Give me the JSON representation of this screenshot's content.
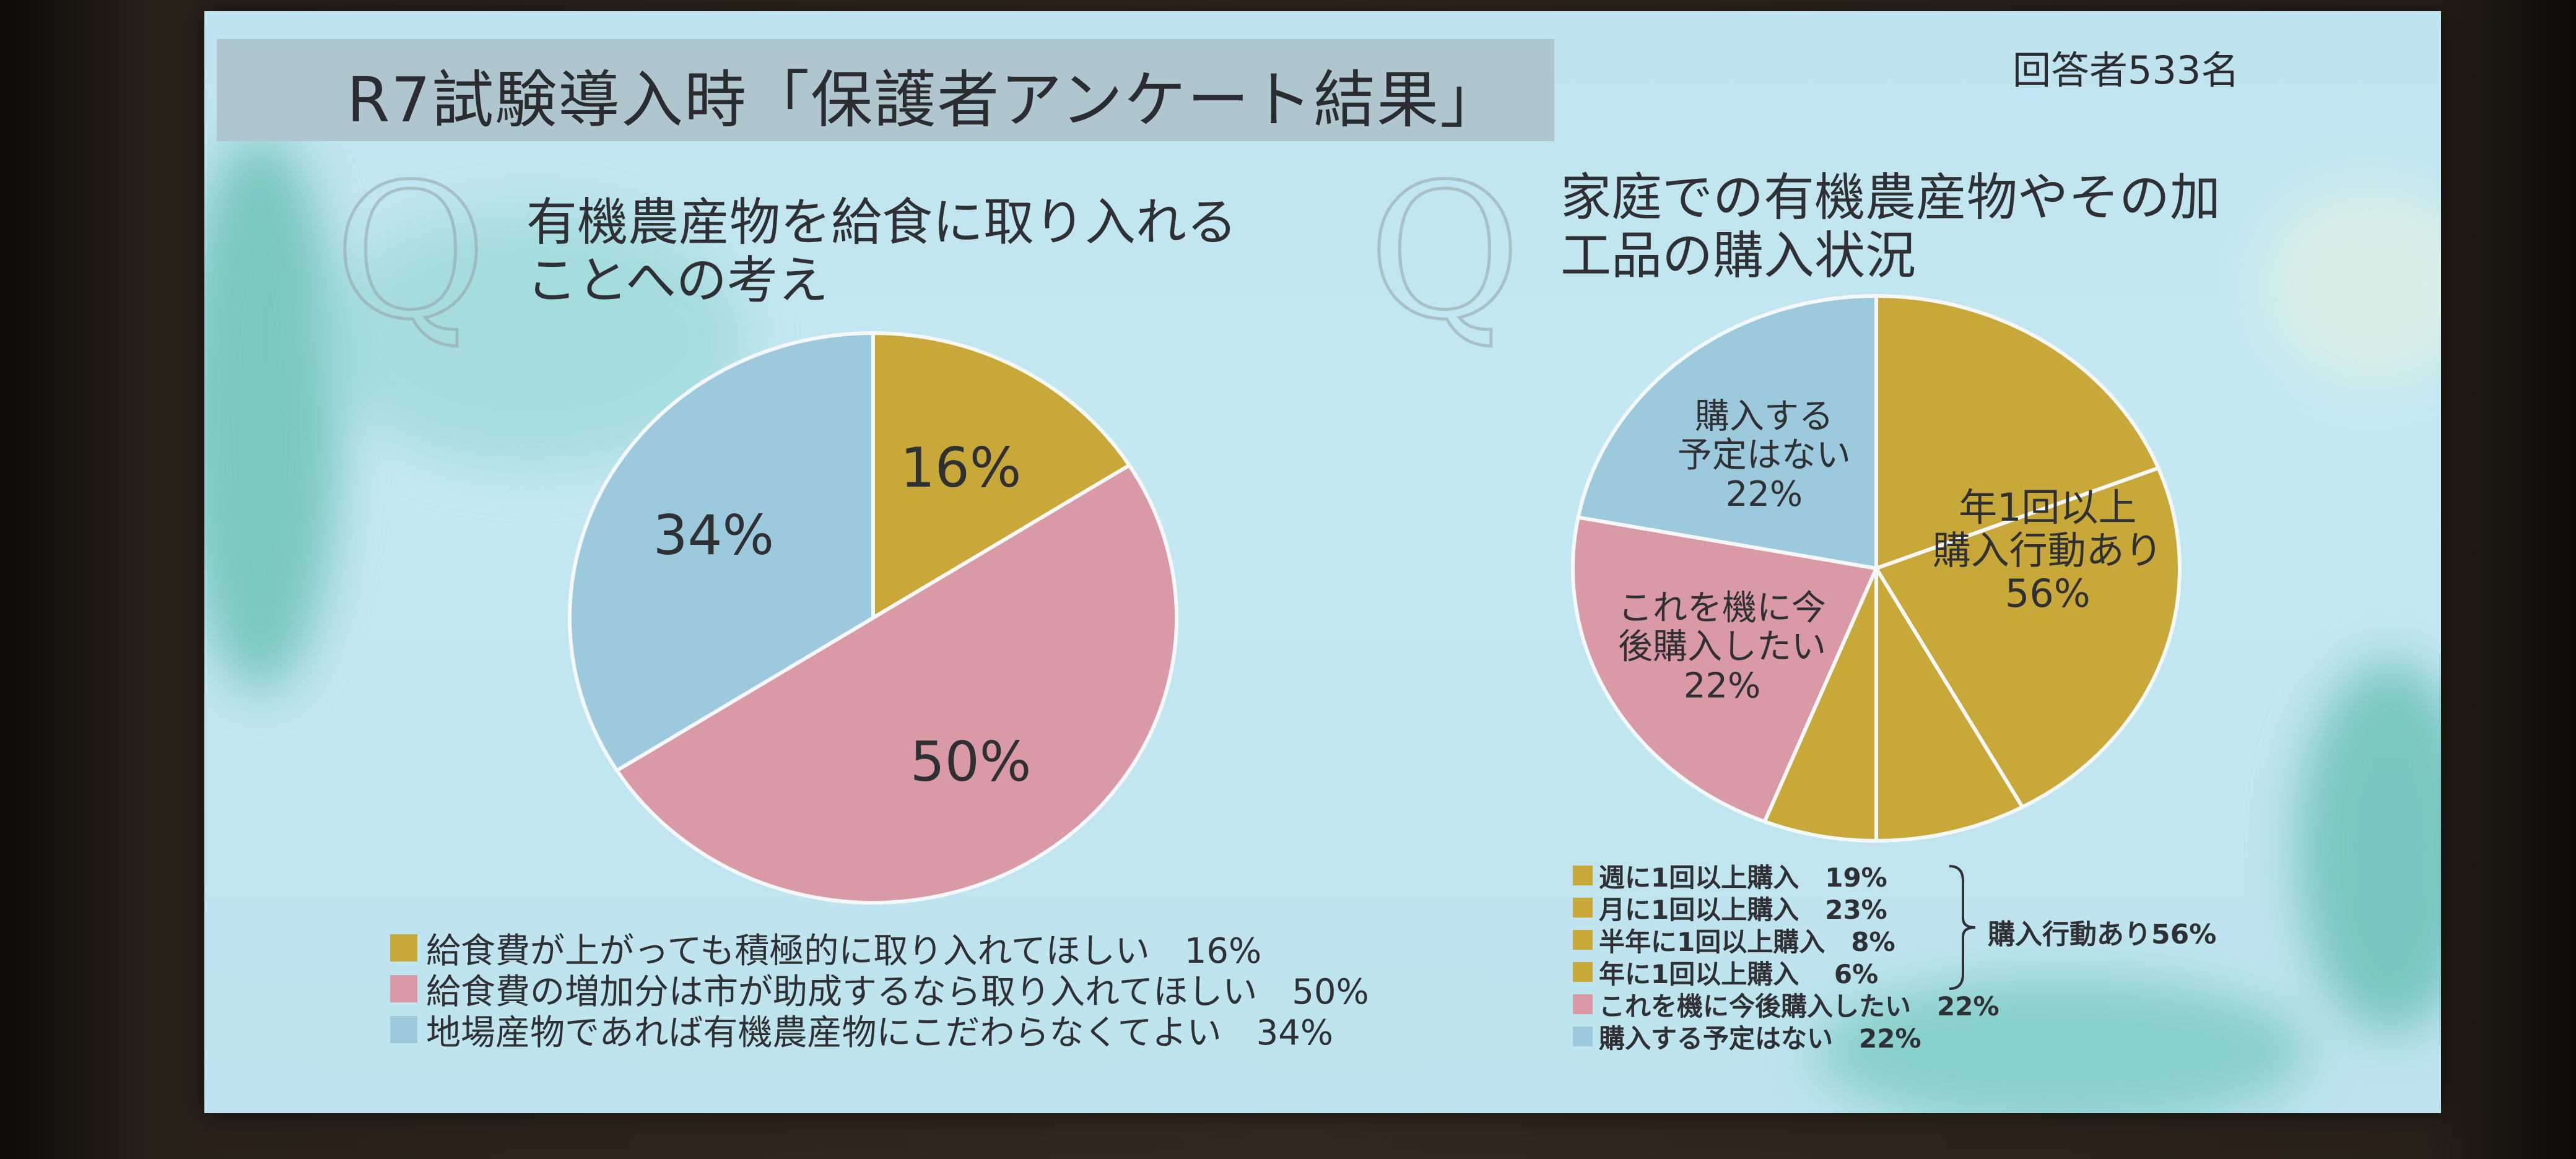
{
  "slide": {
    "title": "R7試験導入時「保護者アンケート結果」",
    "respondents": "回答者533名",
    "q_mark": "Q"
  },
  "colors": {
    "gold": "#c9a83a",
    "pink": "#d99aa6",
    "blue": "#9dc9dc",
    "stroke": "#f4f8f8"
  },
  "chart_data": [
    {
      "type": "pie",
      "title": "有機農産物を給食に取り入れる\nことへの考え",
      "slices": [
        {
          "label": "給食費が上がっても積極的に取り入れてほしい",
          "value": 16,
          "display": "16%",
          "legend": "給食費が上がっても積極的に取り入れてほしい　16%",
          "color": "#c9a83a"
        },
        {
          "label": "給食費の増加分は市が助成するなら取り入れてほしい",
          "value": 50,
          "display": "50%",
          "legend": "給食費の増加分は市が助成するなら取り入れてほしい　50%",
          "color": "#d99aa6"
        },
        {
          "label": "地場産物であれば有機農産物にこだわらなくてよい",
          "value": 34,
          "display": "34%",
          "legend": "地場産物であれば有機農産物にこだわらなくてよい　34%",
          "color": "#9dc9dc"
        }
      ]
    },
    {
      "type": "pie",
      "title": "家庭での有機農産物やその加\n工品の購入状況",
      "slices": [
        {
          "label": "週に1回以上購入",
          "value": 19,
          "legend": "週に1回以上購入　19%",
          "color": "#c9a83a"
        },
        {
          "label": "月に1回以上購入",
          "value": 23,
          "legend": "月に1回以上購入　23%",
          "color": "#c9a83a"
        },
        {
          "label": "半年に1回以上購入",
          "value": 8,
          "legend": "半年に1回以上購入　8%",
          "color": "#c9a83a"
        },
        {
          "label": "年に1回以上購入",
          "value": 6,
          "legend": "年に1回以上購入　 6%",
          "color": "#c9a83a"
        },
        {
          "label": "これを機に今後購入したい",
          "value": 22,
          "legend": "これを機に今後購入したい　22%",
          "color": "#d99aa6"
        },
        {
          "label": "購入する予定はない",
          "value": 22,
          "legend": "購入する予定はない　22%",
          "color": "#9dc9dc"
        }
      ],
      "group_labels": {
        "purchase": "年1回以上\n購入行動あり\n56%",
        "wish": "これを機に今\n後購入したい\n22%",
        "none": "購入する\n予定はない\n22%"
      },
      "bracket_label": "購入行動あり56%"
    }
  ]
}
